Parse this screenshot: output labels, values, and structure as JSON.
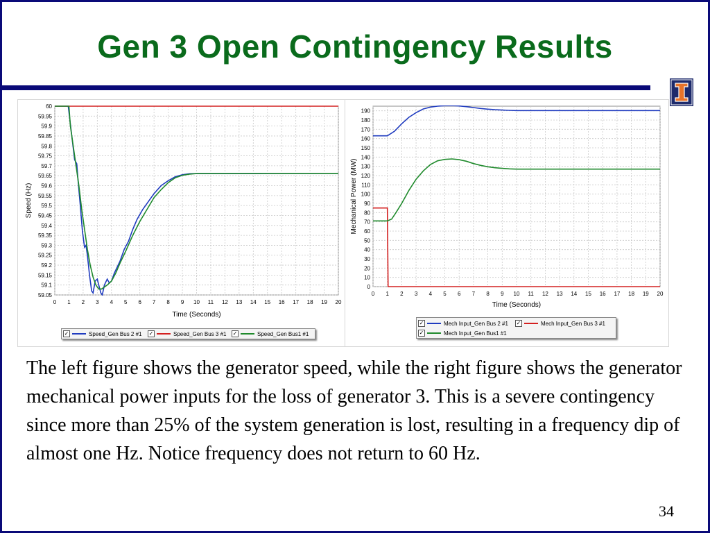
{
  "slide": {
    "title": "Gen 3 Open Contingency Results",
    "body": "The left figure shows the generator speed, while the right figure shows the generator mechanical power inputs for the loss of generator 3.  This is a severe contingency since more than 25% of the system generation is lost, resulting in a frequency dip of almost one Hz.  Notice frequency does not return to 60 Hz.",
    "page_number": "34",
    "colors": {
      "title": "#0a6b1c",
      "accent_bar": "#0a0a78"
    },
    "logo_icon": "illinois-block-i-icon"
  },
  "chart_data": [
    {
      "type": "line",
      "title": "",
      "xlabel": "Time (Seconds)",
      "ylabel": "Speed (Hz)",
      "xlim": [
        0,
        20
      ],
      "ylim": [
        59.05,
        60
      ],
      "xticks": [
        0,
        1,
        2,
        3,
        4,
        5,
        6,
        7,
        8,
        9,
        10,
        11,
        12,
        13,
        14,
        15,
        16,
        17,
        18,
        19,
        20
      ],
      "yticks": [
        "59.05",
        "59.1",
        "59.15",
        "59.2",
        "59.25",
        "59.3",
        "59.35",
        "59.4",
        "59.45",
        "59.5",
        "59.55",
        "59.6",
        "59.65",
        "59.7",
        "59.75",
        "59.8",
        "59.85",
        "59.9",
        "59.95",
        "60"
      ],
      "grid": true,
      "legend_position": "bottom",
      "series": [
        {
          "name": "Speed_Gen Bus 2 #1",
          "color": "#1f3bbf",
          "points": [
            [
              0,
              60
            ],
            [
              0.95,
              60
            ],
            [
              1.05,
              59.94
            ],
            [
              1.2,
              59.85
            ],
            [
              1.4,
              59.73
            ],
            [
              1.55,
              59.71
            ],
            [
              1.65,
              59.62
            ],
            [
              1.8,
              59.5
            ],
            [
              1.95,
              59.37
            ],
            [
              2.1,
              59.29
            ],
            [
              2.2,
              59.3
            ],
            [
              2.3,
              59.25
            ],
            [
              2.45,
              59.15
            ],
            [
              2.6,
              59.07
            ],
            [
              2.7,
              59.06
            ],
            [
              2.85,
              59.12
            ],
            [
              3.0,
              59.13
            ],
            [
              3.1,
              59.1
            ],
            [
              3.25,
              59.06
            ],
            [
              3.35,
              59.05
            ],
            [
              3.5,
              59.1
            ],
            [
              3.7,
              59.13
            ],
            [
              3.85,
              59.11
            ],
            [
              4.0,
              59.12
            ],
            [
              4.2,
              59.16
            ],
            [
              4.4,
              59.19
            ],
            [
              4.6,
              59.22
            ],
            [
              4.9,
              59.28
            ],
            [
              5.2,
              59.32
            ],
            [
              5.5,
              59.38
            ],
            [
              5.8,
              59.43
            ],
            [
              6.2,
              59.48
            ],
            [
              6.6,
              59.52
            ],
            [
              7.0,
              59.56
            ],
            [
              7.5,
              59.6
            ],
            [
              8,
              59.625
            ],
            [
              8.5,
              59.645
            ],
            [
              9,
              59.655
            ],
            [
              9.5,
              59.66
            ],
            [
              10,
              59.661
            ],
            [
              11,
              59.661
            ],
            [
              14.5,
              59.661
            ],
            [
              15,
              59.662
            ],
            [
              20,
              59.662
            ]
          ]
        },
        {
          "name": "Speed_Gen Bus 3 #1",
          "color": "#d42020",
          "points": [
            [
              0,
              60
            ],
            [
              20,
              60
            ]
          ]
        },
        {
          "name": "Speed_Gen Bus1 #1",
          "color": "#1f8a2c",
          "points": [
            [
              0,
              60
            ],
            [
              1,
              60
            ],
            [
              1.1,
              59.9
            ],
            [
              1.3,
              59.8
            ],
            [
              1.5,
              59.7
            ],
            [
              1.7,
              59.6
            ],
            [
              1.9,
              59.48
            ],
            [
              2.1,
              59.38
            ],
            [
              2.3,
              59.28
            ],
            [
              2.5,
              59.2
            ],
            [
              2.7,
              59.14
            ],
            [
              2.9,
              59.1
            ],
            [
              3.1,
              59.08
            ],
            [
              3.3,
              59.08
            ],
            [
              3.5,
              59.09
            ],
            [
              3.7,
              59.1
            ],
            [
              4.0,
              59.12
            ],
            [
              4.3,
              59.16
            ],
            [
              4.6,
              59.21
            ],
            [
              5.0,
              59.27
            ],
            [
              5.5,
              59.35
            ],
            [
              6.0,
              59.42
            ],
            [
              6.5,
              59.48
            ],
            [
              7.0,
              59.54
            ],
            [
              7.5,
              59.58
            ],
            [
              8,
              59.615
            ],
            [
              8.5,
              59.64
            ],
            [
              9,
              59.652
            ],
            [
              9.5,
              59.658
            ],
            [
              10,
              59.661
            ],
            [
              20,
              59.662
            ]
          ]
        }
      ]
    },
    {
      "type": "line",
      "title": "",
      "xlabel": "Time (Seconds)",
      "ylabel": "Mechanical Power (MW)",
      "xlim": [
        0,
        20
      ],
      "ylim": [
        0,
        195
      ],
      "xticks": [
        0,
        1,
        2,
        3,
        4,
        5,
        6,
        7,
        8,
        9,
        10,
        11,
        12,
        13,
        14,
        15,
        16,
        17,
        18,
        19,
        20
      ],
      "yticks": [
        "0",
        "10",
        "20",
        "30",
        "40",
        "50",
        "60",
        "70",
        "80",
        "90",
        "100",
        "110",
        "120",
        "130",
        "140",
        "150",
        "160",
        "170",
        "180",
        "190"
      ],
      "grid": true,
      "legend_position": "bottom",
      "series": [
        {
          "name": "Mech Input_Gen Bus 2 #1",
          "color": "#1f3bbf",
          "points": [
            [
              0,
              163
            ],
            [
              1,
              163
            ],
            [
              1.5,
              168
            ],
            [
              2,
              176
            ],
            [
              2.5,
              183
            ],
            [
              3,
              188
            ],
            [
              3.5,
              192
            ],
            [
              4,
              194
            ],
            [
              4.5,
              195
            ],
            [
              5,
              195.5
            ],
            [
              5.5,
              195.6
            ],
            [
              6,
              195.2
            ],
            [
              6.5,
              194.5
            ],
            [
              7,
              193.5
            ],
            [
              7.5,
              192.5
            ],
            [
              8,
              191.8
            ],
            [
              8.5,
              191.2
            ],
            [
              9,
              190.8
            ],
            [
              9.5,
              190.5
            ],
            [
              10,
              190.3
            ],
            [
              20,
              190.3
            ]
          ]
        },
        {
          "name": "Mech Input_Gen Bus 3 #1",
          "color": "#d42020",
          "points": [
            [
              0,
              85
            ],
            [
              1,
              85
            ],
            [
              1.05,
              0
            ],
            [
              20,
              0
            ]
          ]
        },
        {
          "name": "Mech Input_Gen Bus1 #1",
          "color": "#1f8a2c",
          "points": [
            [
              0,
              71
            ],
            [
              1,
              71
            ],
            [
              1.3,
              73
            ],
            [
              1.6,
              80
            ],
            [
              2,
              90
            ],
            [
              2.5,
              104
            ],
            [
              3,
              116
            ],
            [
              3.5,
              125
            ],
            [
              4,
              132
            ],
            [
              4.5,
              136
            ],
            [
              5,
              137.5
            ],
            [
              5.5,
              138
            ],
            [
              6,
              137.2
            ],
            [
              6.5,
              135.5
            ],
            [
              7,
              133
            ],
            [
              7.5,
              131
            ],
            [
              8,
              129.5
            ],
            [
              8.5,
              128.5
            ],
            [
              9,
              127.8
            ],
            [
              9.5,
              127.3
            ],
            [
              10,
              127
            ],
            [
              20,
              127
            ]
          ]
        }
      ]
    }
  ]
}
